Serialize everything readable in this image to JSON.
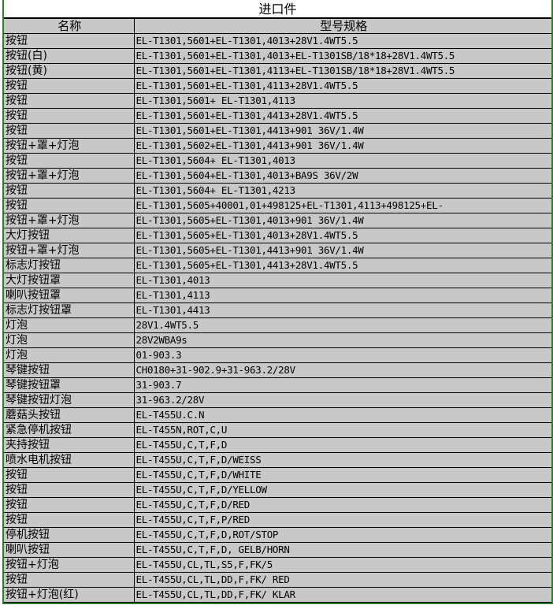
{
  "title": "进口件",
  "columns": [
    "名称",
    "型号规格"
  ],
  "rows": [
    [
      "按钮",
      "EL-T1301,5601+EL-T1301,4013+28V1.4WT5.5"
    ],
    [
      "按钮(白)",
      "EL-T1301,5601+EL-T1301,4013+EL-T1301SB/18*18+28V1.4WT5.5"
    ],
    [
      "按钮(黄)",
      "EL-T1301,5601+EL-T1301,4113+EL-T1301SB/18*18+28V1.4WT5.5"
    ],
    [
      "按钮",
      "EL-T1301,5601+EL-T1301,4113+28V1.4WT5.5"
    ],
    [
      "按钮",
      "EL-T1301,5601+ EL-T1301,4113"
    ],
    [
      "按钮",
      "EL-T1301,5601+EL-T1301,4413+28V1.4WT5.5"
    ],
    [
      "按钮",
      "EL-T1301,5601+EL-T1301,4413+901  36V/1.4W"
    ],
    [
      "按钮+罩+灯泡",
      "EL-T1301,5602+EL-T1301,4413+901  36V/1.4W"
    ],
    [
      "按钮",
      "EL-T1301,5604+ EL-T1301,4013"
    ],
    [
      "按钮+罩+灯泡",
      "EL-T1301,5604+EL-T1301,4013+BA9S  36V/2W"
    ],
    [
      "按钮",
      "EL-T1301,5604+ EL-T1301,4213"
    ],
    [
      "按钮",
      "EL-T1301,5605+40001,01+498125+EL-T1301,4113+498125+EL-"
    ],
    [
      "按钮+罩+灯泡",
      "EL-T1301,5605+EL-T1301,4013+901  36V/1.4W"
    ],
    [
      "大灯按钮",
      "EL-T1301,5605+EL-T1301,4013+28V1.4WT5.5"
    ],
    [
      "按钮+罩+灯泡",
      "EL-T1301,5605+EL-T1301,4413+901  36V/1.4W"
    ],
    [
      "标志灯按钮",
      "EL-T1301,5605+EL-T1301,4413+28V1.4WT5.5"
    ],
    [
      "大灯按钮罩",
      "EL-T1301,4013"
    ],
    [
      "喇叭按钮罩",
      "EL-T1301,4113"
    ],
    [
      "标志灯按钮罩",
      "EL-T1301,4413"
    ],
    [
      "灯泡",
      "28V1.4WT5.5"
    ],
    [
      "灯泡",
      "28V2WBA9s"
    ],
    [
      "灯泡",
      "01-903.3"
    ],
    [
      "琴键按钮",
      "CH0180+31-902.9+31-963.2/28V"
    ],
    [
      "琴键按钮罩",
      "31-903.7"
    ],
    [
      "琴键按钮灯泡",
      "31-963.2/28V"
    ],
    [
      "蘑菇头按钮",
      "EL-T455U.C.N"
    ],
    [
      "紧急停机按钮",
      "EL-T455N,ROT,C,U"
    ],
    [
      "夹持按钮",
      "EL-T455U,C,T,F,D"
    ],
    [
      "喷水电机按钮",
      "EL-T455U,C,T,F,D/WEISS"
    ],
    [
      "按钮",
      "EL-T455U,C,T,F,D/WHITE"
    ],
    [
      "按钮",
      "EL-T455U,C,T,F,D/YELLOW"
    ],
    [
      "按钮",
      "EL-T455U,C,T,F,D/RED"
    ],
    [
      "按钮",
      "EL-T455U,C,T,F,P/RED"
    ],
    [
      "停机按钮",
      "EL-T455U,C,T,F,D,ROT/STOP"
    ],
    [
      "喇叭按钮",
      "EL-T455U,C,T,F,D,  GELB/HORN"
    ],
    [
      "按钮+灯泡",
      "EL-T455U,CL,TL,S5,F,FK/5"
    ],
    [
      "按钮",
      "EL-T455U,CL,TL,DD,F,FK/ RED"
    ],
    [
      "按钮+灯泡(红)",
      "EL-T455U,CL,TL,DD,F,FK/ KLAR"
    ]
  ],
  "colors": {
    "cell_bg": "#c8c8c8",
    "grid": "#000000",
    "selection_border": "#2e7d32"
  }
}
